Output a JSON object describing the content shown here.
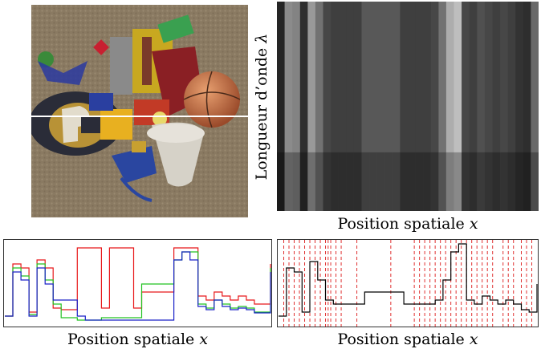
{
  "figure": {
    "spectrogram": {
      "ylabel": "Longueur d’onde",
      "ylabel_symbol": "λ",
      "xlabel": "Position spatiale",
      "xlabel_symbol": "x"
    },
    "rgb_profile": {
      "xlabel": "Position spatiale",
      "xlabel_symbol": "x",
      "colors": {
        "red": "#e8181a",
        "green": "#22c222",
        "blue": "#1a22c8"
      }
    },
    "gray_profile": {
      "xlabel": "Position spatiale",
      "xlabel_symbol": "x",
      "line_color": "#000000",
      "marker_color": "#e03030"
    }
  },
  "chart_data": [
    {
      "type": "line",
      "x": [
        0,
        3,
        6,
        9,
        12,
        15,
        18,
        21,
        24,
        27,
        30,
        33,
        36,
        39,
        42,
        45,
        48,
        51,
        54,
        57,
        60,
        63,
        66,
        69,
        72,
        75,
        78,
        81,
        84,
        87,
        90,
        93,
        96,
        99
      ],
      "series": [
        {
          "values": [
            0.1,
            0.75,
            0.7,
            0.15,
            0.8,
            0.7,
            0.2,
            0.18,
            0.18,
            0.95,
            0.95,
            0.95,
            0.2,
            0.95,
            0.95,
            0.95,
            0.2,
            0.4,
            0.4,
            0.4,
            0.4,
            0.95,
            0.95,
            0.95,
            0.35,
            0.3,
            0.4,
            0.35,
            0.3,
            0.35,
            0.3,
            0.25,
            0.25,
            0.75
          ]
        },
        {
          "values": [
            0.1,
            0.7,
            0.6,
            0.12,
            0.75,
            0.55,
            0.25,
            0.08,
            0.08,
            0.05,
            0.05,
            0.05,
            0.08,
            0.08,
            0.08,
            0.08,
            0.08,
            0.5,
            0.5,
            0.5,
            0.5,
            0.8,
            0.9,
            0.9,
            0.25,
            0.2,
            0.3,
            0.25,
            0.2,
            0.22,
            0.2,
            0.15,
            0.15,
            0.7
          ]
        },
        {
          "values": [
            0.1,
            0.65,
            0.55,
            0.1,
            0.7,
            0.5,
            0.3,
            0.3,
            0.3,
            0.1,
            0.05,
            0.05,
            0.05,
            0.05,
            0.05,
            0.05,
            0.05,
            0.05,
            0.05,
            0.05,
            0.05,
            0.8,
            0.9,
            0.8,
            0.22,
            0.18,
            0.3,
            0.22,
            0.18,
            0.2,
            0.18,
            0.14,
            0.14,
            0.65
          ]
        }
      ]
    },
    {
      "type": "line",
      "x": [
        0,
        3,
        6,
        9,
        12,
        15,
        18,
        21,
        24,
        27,
        30,
        33,
        36,
        39,
        42,
        45,
        48,
        51,
        54,
        57,
        60,
        63,
        66,
        69,
        72,
        75,
        78,
        81,
        84,
        87,
        90,
        93,
        96,
        99
      ],
      "series": [
        {
          "values": [
            0.1,
            0.7,
            0.65,
            0.15,
            0.78,
            0.55,
            0.3,
            0.25,
            0.25,
            0.25,
            0.25,
            0.4,
            0.4,
            0.4,
            0.4,
            0.4,
            0.25,
            0.25,
            0.25,
            0.25,
            0.3,
            0.55,
            0.9,
            1.0,
            0.3,
            0.25,
            0.35,
            0.3,
            0.25,
            0.3,
            0.25,
            0.18,
            0.15,
            0.5
          ]
        }
      ],
      "boundaries": [
        2,
        4,
        6,
        8,
        10,
        12,
        14,
        16,
        18,
        19,
        20,
        22,
        24,
        30,
        43,
        52,
        54,
        56,
        58,
        60,
        62,
        64,
        66,
        68,
        70,
        72,
        74,
        76,
        78,
        80,
        82,
        86,
        88,
        90,
        93,
        95,
        97
      ]
    }
  ]
}
